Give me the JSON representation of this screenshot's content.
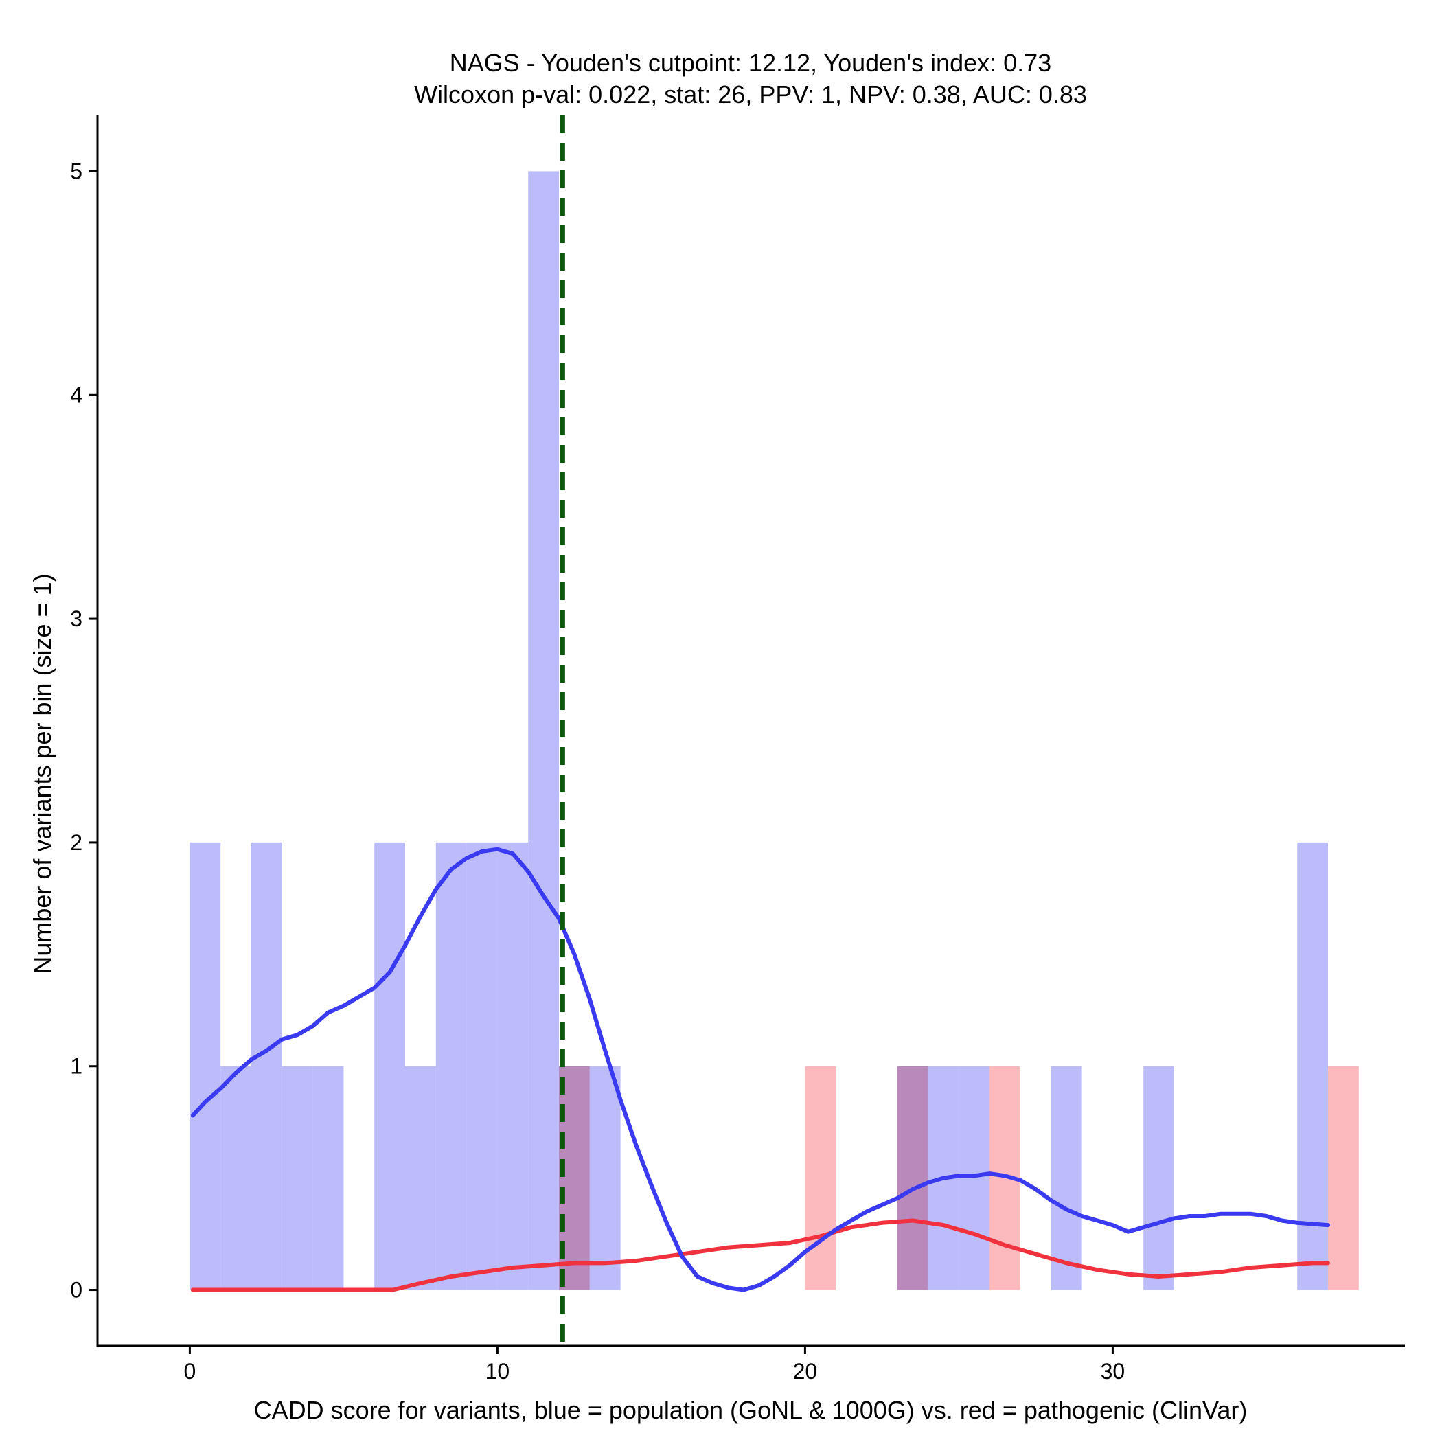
{
  "chart_data": {
    "type": "bar",
    "title": "NAGS - Youden's cutpoint: 12.12, Youden's index: 0.73",
    "subtitle": "Wilcoxon p-val: 0.022, stat: 26, PPV: 1, NPV: 0.38, AUC: 0.83",
    "xlabel": "CADD score for variants, blue = population (GoNL & 1000G) vs. red = pathogenic (ClinVar)",
    "ylabel": "Number of variants per bin (size = 1)",
    "xlim": [
      -3,
      39.5
    ],
    "ylim": [
      -0.25,
      5.25
    ],
    "x_ticks": [
      0,
      10,
      20,
      30
    ],
    "y_ticks": [
      0,
      1,
      2,
      3,
      4,
      5
    ],
    "cutpoint": 12.12,
    "colors": {
      "population_bar": "#b3b3fa",
      "pathogenic_bar": "#fcb3b8",
      "population_line": "#3a3af0",
      "pathogenic_line": "#f0323f",
      "cutpoint_line": "#0a5a0a",
      "axis": "#000000"
    },
    "series": [
      {
        "name": "population (GoNL & 1000G)",
        "bins": [
          {
            "start": 0,
            "end": 1,
            "count": 2
          },
          {
            "start": 1,
            "end": 2,
            "count": 1
          },
          {
            "start": 2,
            "end": 3,
            "count": 2
          },
          {
            "start": 3,
            "end": 4,
            "count": 1
          },
          {
            "start": 4,
            "end": 5,
            "count": 1
          },
          {
            "start": 6,
            "end": 7,
            "count": 2
          },
          {
            "start": 7,
            "end": 8,
            "count": 1
          },
          {
            "start": 8,
            "end": 9,
            "count": 2
          },
          {
            "start": 9,
            "end": 10,
            "count": 2
          },
          {
            "start": 10,
            "end": 11,
            "count": 2
          },
          {
            "start": 11,
            "end": 12,
            "count": 5
          },
          {
            "start": 12,
            "end": 13,
            "count": 1
          },
          {
            "start": 13,
            "end": 14,
            "count": 1
          },
          {
            "start": 23,
            "end": 24,
            "count": 1
          },
          {
            "start": 24,
            "end": 25,
            "count": 1
          },
          {
            "start": 25,
            "end": 26,
            "count": 1
          },
          {
            "start": 28,
            "end": 29,
            "count": 1
          },
          {
            "start": 31,
            "end": 32,
            "count": 1
          },
          {
            "start": 36,
            "end": 37,
            "count": 2
          }
        ],
        "density": [
          [
            0.1,
            0.78
          ],
          [
            0.5,
            0.84
          ],
          [
            1,
            0.9
          ],
          [
            1.5,
            0.97
          ],
          [
            2,
            1.03
          ],
          [
            2.5,
            1.07
          ],
          [
            3,
            1.12
          ],
          [
            3.5,
            1.14
          ],
          [
            4,
            1.18
          ],
          [
            4.5,
            1.24
          ],
          [
            5,
            1.27
          ],
          [
            5.5,
            1.31
          ],
          [
            6,
            1.35
          ],
          [
            6.5,
            1.42
          ],
          [
            7,
            1.54
          ],
          [
            7.5,
            1.67
          ],
          [
            8,
            1.79
          ],
          [
            8.5,
            1.88
          ],
          [
            9,
            1.93
          ],
          [
            9.5,
            1.96
          ],
          [
            10,
            1.97
          ],
          [
            10.5,
            1.95
          ],
          [
            11,
            1.87
          ],
          [
            11.5,
            1.76
          ],
          [
            12,
            1.66
          ],
          [
            12.5,
            1.5
          ],
          [
            13,
            1.3
          ],
          [
            13.5,
            1.07
          ],
          [
            14,
            0.85
          ],
          [
            14.5,
            0.65
          ],
          [
            15,
            0.47
          ],
          [
            15.5,
            0.3
          ],
          [
            16,
            0.15
          ],
          [
            16.5,
            0.06
          ],
          [
            17,
            0.03
          ],
          [
            17.5,
            0.01
          ],
          [
            18,
            0.0
          ],
          [
            18.5,
            0.02
          ],
          [
            19,
            0.06
          ],
          [
            19.5,
            0.11
          ],
          [
            20,
            0.17
          ],
          [
            20.5,
            0.22
          ],
          [
            21,
            0.27
          ],
          [
            21.5,
            0.31
          ],
          [
            22,
            0.35
          ],
          [
            22.5,
            0.38
          ],
          [
            23,
            0.41
          ],
          [
            23.5,
            0.45
          ],
          [
            24,
            0.48
          ],
          [
            24.5,
            0.5
          ],
          [
            25,
            0.51
          ],
          [
            25.5,
            0.51
          ],
          [
            26,
            0.52
          ],
          [
            26.5,
            0.51
          ],
          [
            27,
            0.49
          ],
          [
            27.5,
            0.45
          ],
          [
            28,
            0.4
          ],
          [
            28.5,
            0.36
          ],
          [
            29,
            0.33
          ],
          [
            29.5,
            0.31
          ],
          [
            30,
            0.29
          ],
          [
            30.5,
            0.26
          ],
          [
            31,
            0.28
          ],
          [
            31.5,
            0.3
          ],
          [
            32,
            0.32
          ],
          [
            32.5,
            0.33
          ],
          [
            33,
            0.33
          ],
          [
            33.5,
            0.34
          ],
          [
            34,
            0.34
          ],
          [
            34.5,
            0.34
          ],
          [
            35,
            0.33
          ],
          [
            35.5,
            0.31
          ],
          [
            36,
            0.3
          ],
          [
            37,
            0.29
          ]
        ]
      },
      {
        "name": "pathogenic (ClinVar)",
        "bins": [
          {
            "start": 12,
            "end": 13,
            "count": 1
          },
          {
            "start": 20,
            "end": 21,
            "count": 1
          },
          {
            "start": 23,
            "end": 24,
            "count": 1
          },
          {
            "start": 26,
            "end": 27,
            "count": 1
          },
          {
            "start": 37,
            "end": 38,
            "count": 1
          }
        ],
        "density": [
          [
            0.1,
            0.0
          ],
          [
            2,
            0.0
          ],
          [
            4,
            0.0
          ],
          [
            6,
            0.0
          ],
          [
            6.6,
            0.0
          ],
          [
            7.5,
            0.03
          ],
          [
            8.5,
            0.06
          ],
          [
            9.5,
            0.08
          ],
          [
            10.5,
            0.1
          ],
          [
            11.5,
            0.11
          ],
          [
            12.5,
            0.12
          ],
          [
            13.5,
            0.12
          ],
          [
            14.5,
            0.13
          ],
          [
            15.5,
            0.15
          ],
          [
            16.5,
            0.17
          ],
          [
            17.5,
            0.19
          ],
          [
            18.5,
            0.2
          ],
          [
            19.5,
            0.21
          ],
          [
            20.5,
            0.24
          ],
          [
            21.5,
            0.28
          ],
          [
            22.5,
            0.3
          ],
          [
            23.5,
            0.31
          ],
          [
            24.5,
            0.29
          ],
          [
            25.5,
            0.25
          ],
          [
            26.5,
            0.2
          ],
          [
            27.5,
            0.16
          ],
          [
            28.5,
            0.12
          ],
          [
            29.5,
            0.09
          ],
          [
            30.5,
            0.07
          ],
          [
            31.5,
            0.06
          ],
          [
            32.5,
            0.07
          ],
          [
            33.5,
            0.08
          ],
          [
            34.5,
            0.1
          ],
          [
            35.5,
            0.11
          ],
          [
            36.5,
            0.12
          ],
          [
            37,
            0.12
          ]
        ]
      }
    ]
  }
}
